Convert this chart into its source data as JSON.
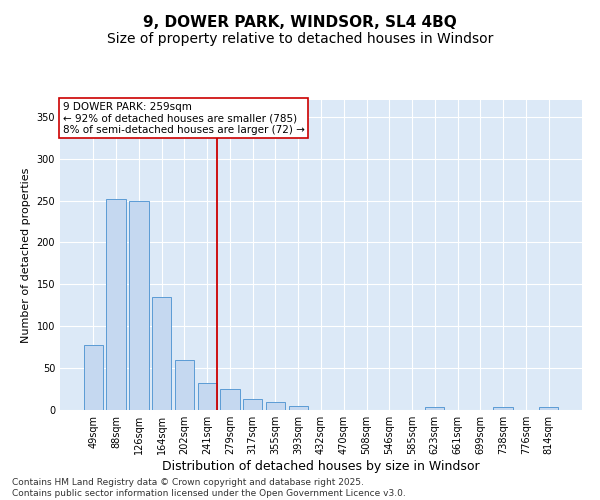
{
  "title": "9, DOWER PARK, WINDSOR, SL4 4BQ",
  "subtitle": "Size of property relative to detached houses in Windsor",
  "xlabel": "Distribution of detached houses by size in Windsor",
  "ylabel": "Number of detached properties",
  "categories": [
    "49sqm",
    "88sqm",
    "126sqm",
    "164sqm",
    "202sqm",
    "241sqm",
    "279sqm",
    "317sqm",
    "355sqm",
    "393sqm",
    "432sqm",
    "470sqm",
    "508sqm",
    "546sqm",
    "585sqm",
    "623sqm",
    "661sqm",
    "699sqm",
    "738sqm",
    "776sqm",
    "814sqm"
  ],
  "values": [
    78,
    252,
    250,
    135,
    60,
    32,
    25,
    13,
    10,
    5,
    0,
    0,
    0,
    0,
    0,
    3,
    0,
    0,
    3,
    0,
    3
  ],
  "bar_color": "#c5d8f0",
  "bar_edge_color": "#5b9bd5",
  "vline_x_index": 5,
  "vline_color": "#cc0000",
  "annotation_text": "9 DOWER PARK: 259sqm\n← 92% of detached houses are smaller (785)\n8% of semi-detached houses are larger (72) →",
  "annotation_box_color": "#ffffff",
  "annotation_box_edge_color": "#cc0000",
  "ylim": [
    0,
    370
  ],
  "yticks": [
    0,
    50,
    100,
    150,
    200,
    250,
    300,
    350
  ],
  "background_color": "#dce9f7",
  "footer_text": "Contains HM Land Registry data © Crown copyright and database right 2025.\nContains public sector information licensed under the Open Government Licence v3.0.",
  "title_fontsize": 11,
  "subtitle_fontsize": 10,
  "xlabel_fontsize": 9,
  "ylabel_fontsize": 8,
  "tick_fontsize": 7,
  "annotation_fontsize": 7.5,
  "footer_fontsize": 6.5
}
